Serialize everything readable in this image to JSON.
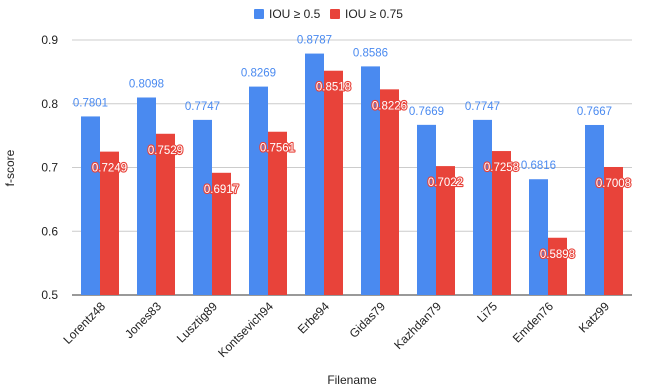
{
  "chart_data": {
    "type": "bar",
    "xlabel": "Filename",
    "ylabel": "f-score",
    "ylim": [
      0.5,
      0.9
    ],
    "yticks": [
      "0.5",
      "0.6",
      "0.7",
      "0.8",
      "0.9"
    ],
    "grid": true,
    "legend_position": "top",
    "categories": [
      "Lorentz48",
      "Jones83",
      "Lusztig89",
      "Kontsevich94",
      "Erbe94",
      "Gidas79",
      "Kazhdan79",
      "Li75",
      "Emden76",
      "Katz99"
    ],
    "series": [
      {
        "name": "IOU ≥ 0.5",
        "color": "#4a8af0",
        "values": [
          0.7801,
          0.8098,
          0.7747,
          0.8269,
          0.8787,
          0.8586,
          0.7669,
          0.7747,
          0.6816,
          0.7667
        ],
        "labels": [
          "0.7801",
          "0.8098",
          "0.7747",
          "0.8269",
          "0.8787",
          "0.8586",
          "0.7669",
          "0.7747",
          "0.6816",
          "0.7667"
        ]
      },
      {
        "name": "IOU ≥ 0.75",
        "color": "#e8433a",
        "values": [
          0.7249,
          0.7529,
          0.6917,
          0.7561,
          0.8518,
          0.8226,
          0.7022,
          0.7258,
          0.5898,
          0.7008
        ],
        "labels": [
          "0.7249",
          "0.7529",
          "0.6917",
          "0.7561",
          "0.8518",
          "0.8226",
          "0.7022",
          "0.7258",
          "0.5898",
          "0.7008"
        ]
      }
    ]
  }
}
